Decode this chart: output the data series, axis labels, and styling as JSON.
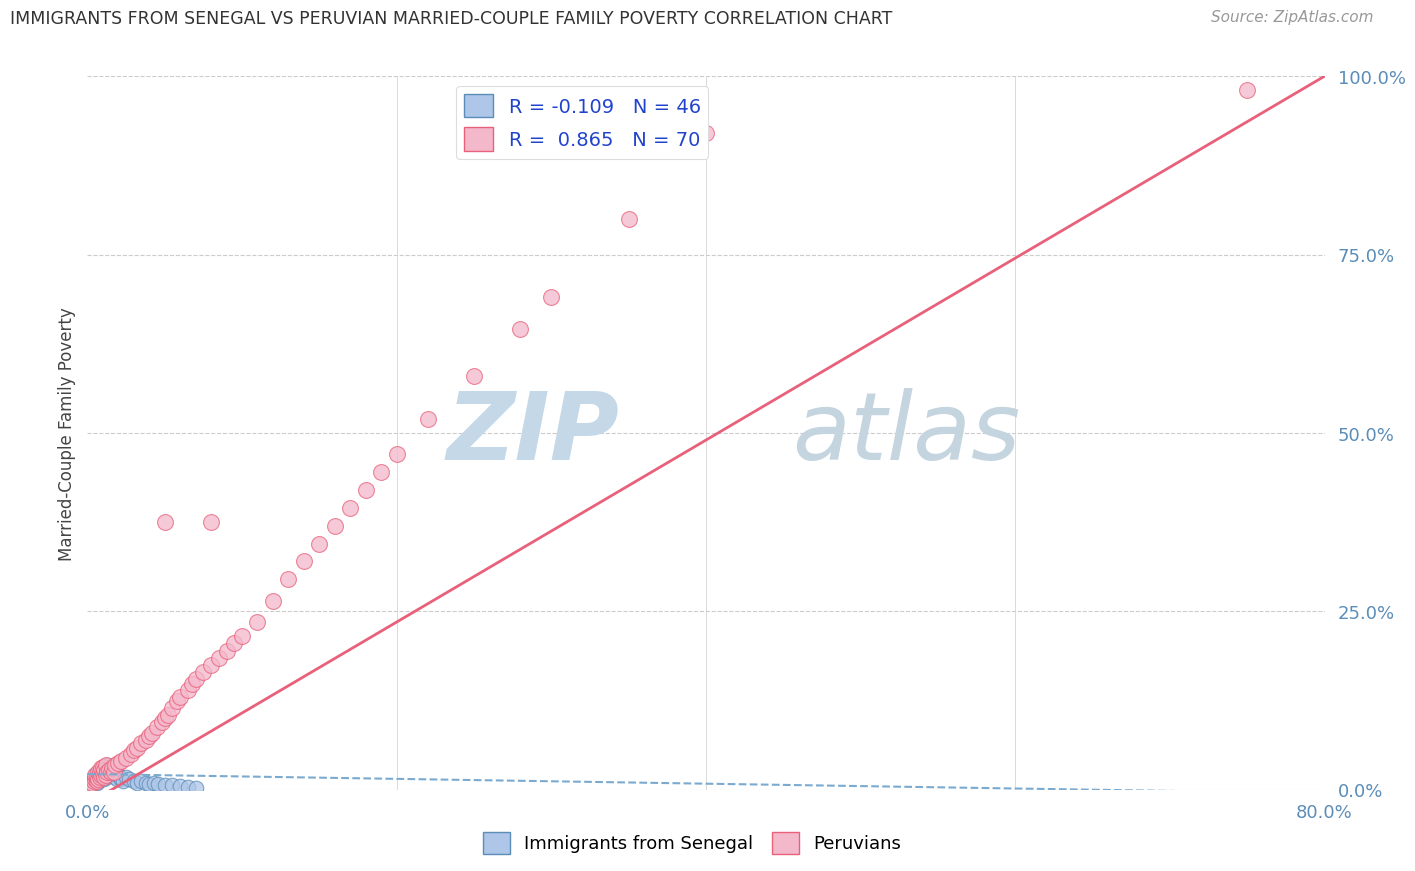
{
  "title": "IMMIGRANTS FROM SENEGAL VS PERUVIAN MARRIED-COUPLE FAMILY POVERTY CORRELATION CHART",
  "source": "Source: ZipAtlas.com",
  "ylabel": "Married-Couple Family Poverty",
  "xlim": [
    0,
    0.8
  ],
  "ylim": [
    0,
    1.0
  ],
  "yticks": [
    0.0,
    0.25,
    0.5,
    0.75,
    1.0
  ],
  "ytick_labels": [
    "0.0%",
    "25.0%",
    "50.0%",
    "75.0%",
    "100.0%"
  ],
  "blue_R": -0.109,
  "blue_N": 46,
  "pink_R": 0.865,
  "pink_N": 70,
  "legend_label_blue": "Immigrants from Senegal",
  "legend_label_pink": "Peruvians",
  "blue_color": "#aec6e8",
  "blue_edge": "#5b8db8",
  "pink_color": "#f4b8cb",
  "pink_edge": "#e8607a",
  "blue_line_color": "#7aaad0",
  "pink_line_color": "#e8607a",
  "watermark_zip_color": "#c5d8e8",
  "watermark_atlas_color": "#c5d5e0",
  "blue_scatter_x": [
    0.002,
    0.003,
    0.004,
    0.005,
    0.005,
    0.006,
    0.006,
    0.007,
    0.007,
    0.008,
    0.008,
    0.009,
    0.009,
    0.01,
    0.01,
    0.011,
    0.011,
    0.012,
    0.012,
    0.013,
    0.013,
    0.014,
    0.015,
    0.015,
    0.016,
    0.017,
    0.018,
    0.019,
    0.02,
    0.021,
    0.022,
    0.023,
    0.025,
    0.027,
    0.03,
    0.032,
    0.035,
    0.038,
    0.04,
    0.043,
    0.046,
    0.05,
    0.055,
    0.06,
    0.065,
    0.07
  ],
  "blue_scatter_y": [
    0.01,
    0.008,
    0.012,
    0.015,
    0.02,
    0.01,
    0.018,
    0.012,
    0.025,
    0.015,
    0.022,
    0.018,
    0.028,
    0.02,
    0.03,
    0.015,
    0.025,
    0.018,
    0.03,
    0.022,
    0.035,
    0.025,
    0.02,
    0.032,
    0.025,
    0.018,
    0.022,
    0.015,
    0.02,
    0.018,
    0.015,
    0.012,
    0.018,
    0.015,
    0.012,
    0.01,
    0.012,
    0.01,
    0.008,
    0.01,
    0.008,
    0.007,
    0.006,
    0.005,
    0.004,
    0.003
  ],
  "pink_scatter_x": [
    0.002,
    0.003,
    0.004,
    0.005,
    0.005,
    0.006,
    0.006,
    0.007,
    0.007,
    0.008,
    0.008,
    0.009,
    0.009,
    0.01,
    0.01,
    0.011,
    0.011,
    0.012,
    0.012,
    0.013,
    0.014,
    0.015,
    0.016,
    0.017,
    0.018,
    0.02,
    0.022,
    0.025,
    0.028,
    0.03,
    0.032,
    0.035,
    0.038,
    0.04,
    0.042,
    0.045,
    0.048,
    0.05,
    0.052,
    0.055,
    0.058,
    0.06,
    0.065,
    0.068,
    0.07,
    0.075,
    0.08,
    0.085,
    0.09,
    0.095,
    0.1,
    0.11,
    0.12,
    0.13,
    0.14,
    0.15,
    0.16,
    0.17,
    0.18,
    0.19,
    0.2,
    0.22,
    0.25,
    0.28,
    0.3,
    0.35,
    0.4,
    0.05,
    0.08,
    0.75
  ],
  "pink_scatter_y": [
    0.008,
    0.01,
    0.012,
    0.015,
    0.02,
    0.012,
    0.018,
    0.015,
    0.025,
    0.018,
    0.025,
    0.02,
    0.03,
    0.022,
    0.032,
    0.018,
    0.028,
    0.02,
    0.035,
    0.025,
    0.028,
    0.025,
    0.03,
    0.025,
    0.035,
    0.038,
    0.04,
    0.045,
    0.05,
    0.055,
    0.058,
    0.065,
    0.07,
    0.075,
    0.08,
    0.088,
    0.095,
    0.1,
    0.105,
    0.115,
    0.125,
    0.13,
    0.14,
    0.148,
    0.155,
    0.165,
    0.175,
    0.185,
    0.195,
    0.205,
    0.215,
    0.235,
    0.265,
    0.295,
    0.32,
    0.345,
    0.37,
    0.395,
    0.42,
    0.445,
    0.47,
    0.52,
    0.58,
    0.645,
    0.69,
    0.8,
    0.92,
    0.375,
    0.375,
    0.98
  ],
  "pink_line_x0": 0.0,
  "pink_line_y0": -0.02,
  "pink_line_x1": 0.8,
  "pink_line_y1": 1.0,
  "blue_line_x0": 0.0,
  "blue_line_y0": 0.022,
  "blue_line_x1": 0.8,
  "blue_line_y1": -0.005,
  "blue_marker_size": 110,
  "pink_marker_size": 130
}
